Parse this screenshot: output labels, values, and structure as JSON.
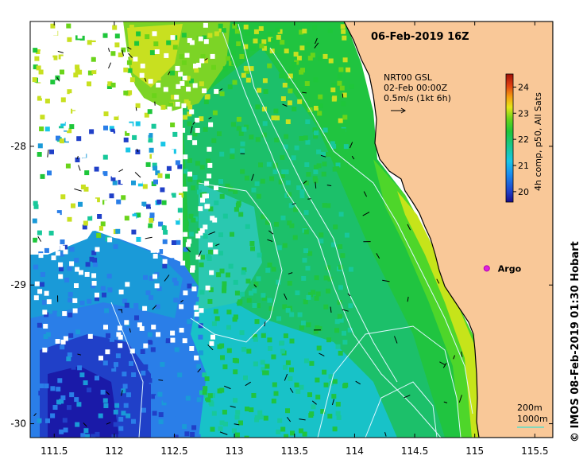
{
  "title": "06-Feb-2019 16Z",
  "credit": "© IMOS 08-Feb-2019 01:30 Hobart",
  "current_ref": {
    "line1": "NRT00 GSL",
    "line2": "02-Feb 00:00Z",
    "line3": "0.5m/s (1kt 6h)"
  },
  "colorbar": {
    "label": "4h comp, p50, All Sats",
    "ticks": [
      "20",
      "21",
      "22",
      "23",
      "24"
    ],
    "range": [
      19.6,
      24.5
    ]
  },
  "marker": {
    "label": "Argo",
    "lon": 115.1,
    "lat": -28.88
  },
  "bathymetry_labels": {
    "a": "200m",
    "b": "1000m"
  },
  "axes": {
    "x_ticks": [
      "111.5",
      "112",
      "112.5",
      "113",
      "113.5",
      "114",
      "114.5",
      "115",
      "115.5"
    ],
    "x_values": [
      111.5,
      112,
      112.5,
      113,
      113.5,
      114,
      114.5,
      115,
      115.5
    ],
    "y_ticks": [
      "-28",
      "-29",
      "-30"
    ],
    "y_values": [
      -28,
      -29,
      -30
    ],
    "x_range": [
      111.3,
      115.65
    ],
    "y_range": [
      -30.1,
      -27.1
    ]
  },
  "colors": {
    "land": "#f9c898",
    "coast": "#000000",
    "contour": "#dff7ff",
    "argo": "#e020e0"
  }
}
